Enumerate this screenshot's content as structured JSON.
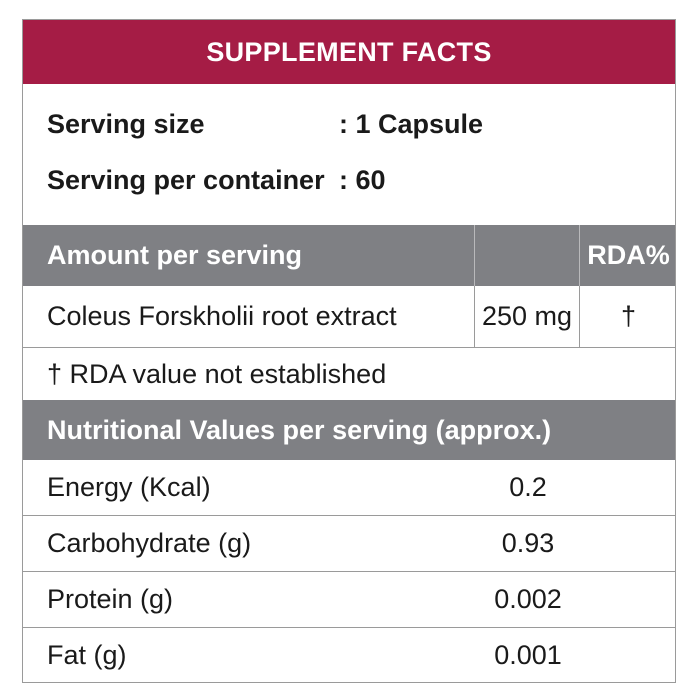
{
  "header": {
    "title": "SUPPLEMENT FACTS"
  },
  "serving": {
    "size_label": "Serving size",
    "size_value": ": 1 Capsule",
    "per_container_label": "Serving per container",
    "per_container_value": ": 60"
  },
  "amount_table": {
    "header_label": "Amount per serving",
    "header_amount": "",
    "header_rda": "RDA%",
    "rows": [
      {
        "name": "Coleus Forskholii root extract",
        "amount": "250 mg",
        "rda": "†"
      }
    ],
    "footnote": "† RDA value not established"
  },
  "nutrition": {
    "header": "Nutritional Values per serving (approx.)",
    "rows": [
      {
        "label": "Energy (Kcal)",
        "value": "0.2"
      },
      {
        "label": "Carbohydrate (g)",
        "value": "0.93"
      },
      {
        "label": "Protein (g)",
        "value": "0.002"
      },
      {
        "label": "Fat (g)",
        "value": "0.001"
      }
    ]
  },
  "colors": {
    "header_bg": "#a51c45",
    "section_bg": "#7f8084"
  }
}
